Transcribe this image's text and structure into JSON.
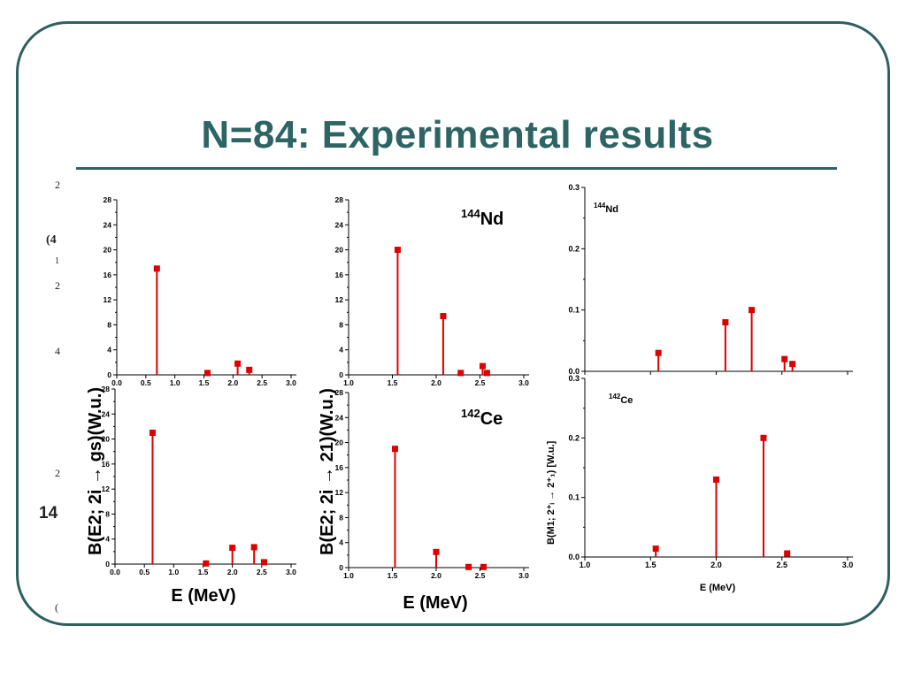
{
  "slide": {
    "title": "N=84: Experimental results",
    "accent_color": "#2e6464"
  },
  "fragments": [
    "2",
    "(4",
    "1",
    "2",
    "4",
    "2",
    "14",
    "("
  ],
  "left_figure": {
    "ylabel_left": "B(E2; 2i → gs)(W.u.)",
    "ylabel_right": "B(E2; 2i → 21)(W.u.)",
    "xlabel": "E (MeV)",
    "nucleus_top": {
      "mass": "144",
      "symbol": "Nd"
    },
    "nucleus_bottom": {
      "mass": "142",
      "symbol": "Ce"
    }
  },
  "right_figure": {
    "ylabel": "B(M1; 2⁺ᵢ → 2⁺₁) [W.u.]",
    "xlabel": "E (MeV)"
  },
  "chart_data": [
    {
      "type": "scatter",
      "style": "stem",
      "nucleus": "144Nd",
      "xlim": [
        0.0,
        3.0
      ],
      "ylim": [
        0,
        28
      ],
      "xticks": [
        "0.0",
        "0.5",
        "1.0",
        "1.5",
        "2.0",
        "2.5",
        "3.0"
      ],
      "yticks": [
        "0",
        "4",
        "8",
        "12",
        "16",
        "20",
        "24",
        "28"
      ],
      "x": [
        0.69,
        1.56,
        2.08,
        2.28
      ],
      "y": [
        17.0,
        0.3,
        1.8,
        0.8
      ],
      "color": "#dd0000"
    },
    {
      "type": "scatter",
      "style": "stem",
      "nucleus": "142Ce",
      "xlim": [
        0.0,
        3.0
      ],
      "ylim": [
        0,
        28
      ],
      "xticks": [
        "0.0",
        "0.5",
        "1.0",
        "1.5",
        "2.0",
        "2.5",
        "3.0"
      ],
      "yticks": [
        "0",
        "4",
        "8",
        "12",
        "16",
        "20",
        "24",
        "28"
      ],
      "x": [
        0.64,
        1.55,
        2.0,
        2.37,
        2.54
      ],
      "y": [
        21.0,
        0.1,
        2.6,
        2.7,
        0.3
      ],
      "color": "#dd0000"
    },
    {
      "type": "scatter",
      "style": "stem",
      "nucleus": "144Nd",
      "xlim": [
        1.0,
        3.0
      ],
      "ylim": [
        0,
        28
      ],
      "xticks": [
        "1.0",
        "1.5",
        "2.0",
        "2.5",
        "3.0"
      ],
      "yticks": [
        "0",
        "4",
        "8",
        "12",
        "16",
        "20",
        "24",
        "28"
      ],
      "x": [
        1.56,
        2.08,
        2.28,
        2.53,
        2.58
      ],
      "y": [
        20.0,
        9.4,
        0.3,
        1.4,
        0.3
      ],
      "color": "#dd0000"
    },
    {
      "type": "scatter",
      "style": "stem",
      "nucleus": "142Ce",
      "xlim": [
        1.0,
        3.0
      ],
      "ylim": [
        0,
        28
      ],
      "xticks": [
        "1.0",
        "1.5",
        "2.0",
        "2.5",
        "3.0"
      ],
      "yticks": [
        "0",
        "4",
        "8",
        "12",
        "16",
        "20",
        "24",
        "28"
      ],
      "x": [
        1.53,
        2.0,
        2.37,
        2.54
      ],
      "y": [
        19.0,
        2.5,
        0.1,
        0.1
      ],
      "color": "#dd0000"
    },
    {
      "type": "scatter",
      "style": "stem",
      "nucleus": "144Nd",
      "xlim": [
        1.0,
        3.0
      ],
      "ylim": [
        0,
        0.3
      ],
      "yticks": [
        "0.0",
        "0.1",
        "0.2",
        "0.3"
      ],
      "x": [
        1.56,
        2.07,
        2.27,
        2.52,
        2.58
      ],
      "y": [
        0.03,
        0.08,
        0.1,
        0.02,
        0.012
      ],
      "color": "#dd0000"
    },
    {
      "type": "scatter",
      "style": "stem",
      "nucleus": "142Ce",
      "xlim": [
        1.0,
        3.0
      ],
      "ylim": [
        0,
        0.3
      ],
      "xticks": [
        "1.0",
        "1.5",
        "2.0",
        "2.5",
        "3.0"
      ],
      "yticks": [
        "0.0",
        "0.1",
        "0.2",
        "0.3"
      ],
      "x": [
        1.54,
        2.0,
        2.36,
        2.54
      ],
      "y": [
        0.014,
        0.13,
        0.2,
        0.006
      ],
      "color": "#dd0000"
    }
  ]
}
